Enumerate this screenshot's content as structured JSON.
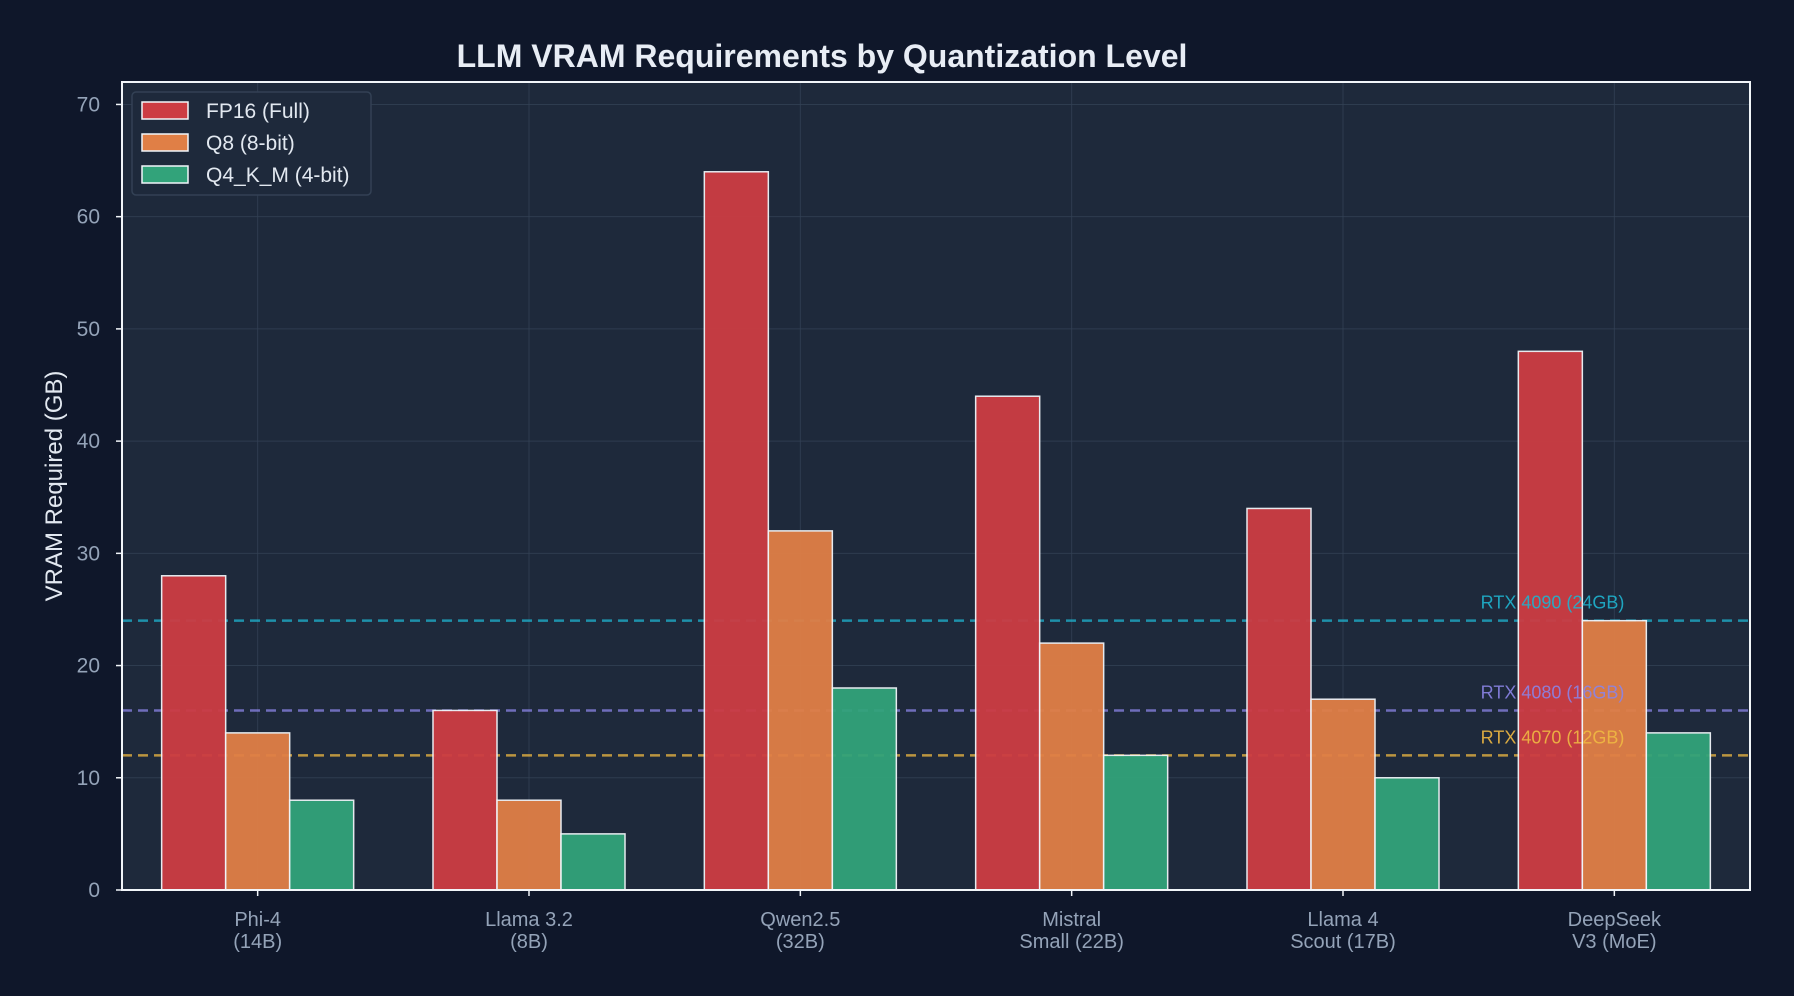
{
  "chart_data": {
    "type": "bar",
    "title": "LLM VRAM Requirements by Quantization Level",
    "xlabel": "",
    "ylabel": "VRAM Required (GB)",
    "ylim": [
      0,
      72
    ],
    "yticks": [
      0,
      10,
      20,
      30,
      40,
      50,
      60,
      70
    ],
    "grid": true,
    "legend_position": "top-left",
    "categories": [
      [
        "Phi-4",
        "(14B)"
      ],
      [
        "Llama 3.2",
        "(8B)"
      ],
      [
        "Qwen2.5",
        "(32B)"
      ],
      [
        "Mistral",
        "Small (22B)"
      ],
      [
        "Llama 4",
        "Scout (17B)"
      ],
      [
        "DeepSeek",
        "V3 (MoE)"
      ]
    ],
    "series": [
      {
        "name": "FP16 (Full)",
        "color": "#cc3c43",
        "values": [
          28,
          16,
          64,
          44,
          34,
          48
        ]
      },
      {
        "name": "Q8 (8-bit)",
        "color": "#e07f46",
        "values": [
          14,
          8,
          32,
          22,
          17,
          24
        ]
      },
      {
        "name": "Q4_K_M (4-bit)",
        "color": "#32a37a",
        "values": [
          8,
          5,
          18,
          12,
          10,
          14
        ]
      }
    ],
    "reference_lines": [
      {
        "label": "RTX 4090 (24GB)",
        "value": 24,
        "color": "#1eb3cf"
      },
      {
        "label": "RTX 4080 (16GB)",
        "value": 16,
        "color": "#8b84e6"
      },
      {
        "label": "RTX 4070 (12GB)",
        "value": 12,
        "color": "#f0b942"
      }
    ]
  }
}
